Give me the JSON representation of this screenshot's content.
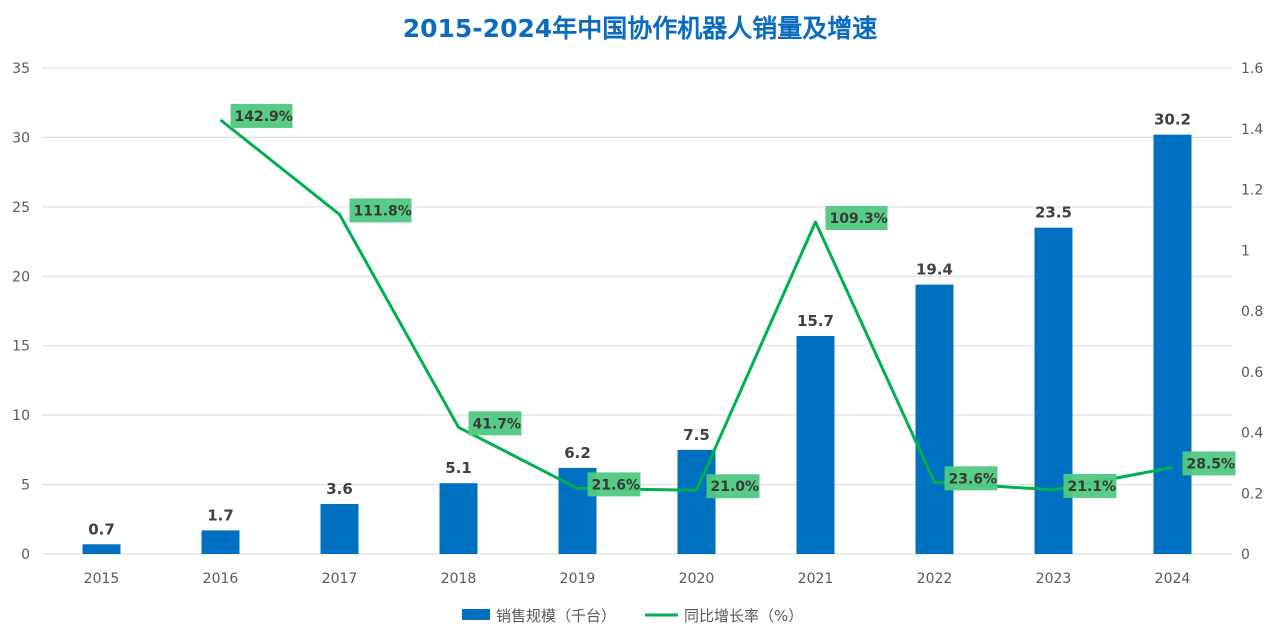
{
  "chart_data": {
    "type": "bar",
    "title": "2015-2024年中国协作机器人销量及增速",
    "categories": [
      "2015",
      "2016",
      "2017",
      "2018",
      "2019",
      "2020",
      "2021",
      "2022",
      "2023",
      "2024"
    ],
    "series": [
      {
        "name": "销售规模（千台）",
        "type": "bar",
        "axis": "left",
        "color": "#0070c0",
        "values": [
          0.7,
          1.7,
          3.6,
          5.1,
          6.2,
          7.5,
          15.7,
          19.4,
          23.5,
          30.2
        ],
        "labels": [
          "0.7",
          "1.7",
          "3.6",
          "5.1",
          "6.2",
          "7.5",
          "15.7",
          "19.4",
          "23.5",
          "30.2"
        ]
      },
      {
        "name": "同比增长率（%）",
        "type": "line",
        "axis": "right",
        "color": "#00b050",
        "values": [
          null,
          1.429,
          1.118,
          0.417,
          0.216,
          0.21,
          1.093,
          0.236,
          0.211,
          0.285
        ],
        "labels": [
          null,
          "142.9%",
          "111.8%",
          "41.7%",
          "21.6%",
          "21.0%",
          "109.3%",
          "23.6%",
          "21.1%",
          "28.5%"
        ]
      }
    ],
    "y_left": {
      "ylim": [
        0,
        35
      ],
      "ticks": [
        "0",
        "5",
        "10",
        "15",
        "20",
        "25",
        "30",
        "35"
      ]
    },
    "y_right": {
      "ylim": [
        0,
        1.6
      ],
      "ticks": [
        "0",
        "0.2",
        "0.4",
        "0.6",
        "0.8",
        "1",
        "1.2",
        "1.4",
        "1.6"
      ]
    },
    "grid": true,
    "legend_position": "bottom",
    "label_box_color": "#4fc97f"
  }
}
